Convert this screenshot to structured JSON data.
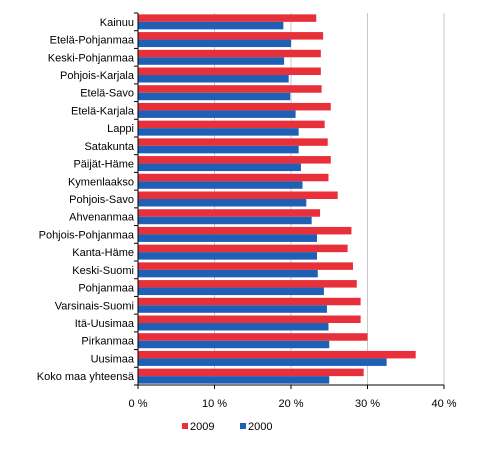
{
  "chart_data": {
    "type": "bar",
    "orientation": "horizontal",
    "categories": [
      "Kainuu",
      "Etelä-Pohjanmaa",
      "Keski-Pohjanmaa",
      "Pohjois-Karjala",
      "Etelä-Savo",
      "Etelä-Karjala",
      "Lappi",
      "Satakunta",
      "Päijät-Häme",
      "Kymenlaakso",
      "Pohjois-Savo",
      "Ahvenanmaa",
      "Pohjois-Pohjanmaa",
      "Kanta-Häme",
      "Keski-Suomi",
      "Pohjanmaa",
      "Varsinais-Suomi",
      "Itä-Uusimaa",
      "Pirkanmaa",
      "Uusimaa",
      "Koko maa yhteensä"
    ],
    "series": [
      {
        "name": "2009",
        "color": "#e8303a",
        "values": [
          23.3,
          24.2,
          23.9,
          23.9,
          24.0,
          25.2,
          24.4,
          24.8,
          25.2,
          24.9,
          26.1,
          23.8,
          27.9,
          27.4,
          28.1,
          28.6,
          29.1,
          29.1,
          30.0,
          36.3,
          29.5
        ]
      },
      {
        "name": "2000",
        "color": "#1f5fb4",
        "values": [
          19.0,
          20.0,
          19.1,
          19.7,
          19.9,
          20.6,
          21.0,
          21.0,
          21.3,
          21.5,
          22.0,
          22.7,
          23.4,
          23.4,
          23.5,
          24.3,
          24.7,
          24.9,
          25.0,
          32.5,
          25.0
        ]
      }
    ],
    "xlim": [
      0,
      40
    ],
    "xticks": [
      "0 %",
      "10 %",
      "20 %",
      "30 %",
      "40 %"
    ],
    "grid": true,
    "legend_position": "bottom"
  }
}
